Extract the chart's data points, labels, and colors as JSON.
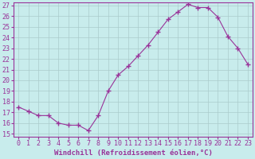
{
  "x": [
    0,
    1,
    2,
    3,
    4,
    5,
    6,
    7,
    8,
    9,
    10,
    11,
    12,
    13,
    14,
    15,
    16,
    17,
    18,
    19,
    20,
    21,
    22,
    23
  ],
  "y": [
    17.5,
    17.1,
    16.7,
    16.7,
    16.0,
    15.8,
    15.8,
    15.3,
    16.7,
    19.0,
    20.5,
    21.3,
    22.3,
    23.3,
    24.5,
    25.7,
    26.4,
    27.1,
    26.8,
    26.8,
    25.9,
    24.1,
    23.0,
    21.5
  ],
  "line_color": "#993399",
  "marker_color": "#993399",
  "bg_color": "#c8ecec",
  "grid_color": "#aacccc",
  "xlabel": "Windchill (Refroidissement éolien,°C)",
  "ylim": [
    15,
    27
  ],
  "xlim": [
    0,
    23
  ],
  "yticks": [
    15,
    16,
    17,
    18,
    19,
    20,
    21,
    22,
    23,
    24,
    25,
    26,
    27
  ],
  "xticks": [
    0,
    1,
    2,
    3,
    4,
    5,
    6,
    7,
    8,
    9,
    10,
    11,
    12,
    13,
    14,
    15,
    16,
    17,
    18,
    19,
    20,
    21,
    22,
    23
  ],
  "xlabel_fontsize": 6.5,
  "tick_fontsize": 6.0,
  "axis_label_color": "#993399",
  "tick_color": "#993399",
  "spine_color": "#993399"
}
